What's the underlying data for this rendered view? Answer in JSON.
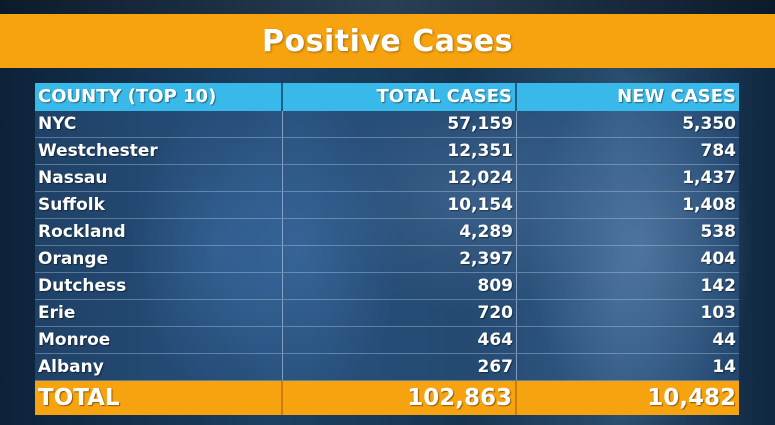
{
  "banner": {
    "title": "Positive Cases"
  },
  "table": {
    "headers": {
      "county": "COUNTY (TOP 10)",
      "total": "TOTAL CASES",
      "new": "NEW CASES"
    },
    "rows": [
      {
        "county": "NYC",
        "total": "57,159",
        "new": "5,350"
      },
      {
        "county": "Westchester",
        "total": "12,351",
        "new": "784"
      },
      {
        "county": "Nassau",
        "total": "12,024",
        "new": "1,437"
      },
      {
        "county": "Suffolk",
        "total": "10,154",
        "new": "1,408"
      },
      {
        "county": "Rockland",
        "total": "4,289",
        "new": "538"
      },
      {
        "county": "Orange",
        "total": "2,397",
        "new": "404"
      },
      {
        "county": "Dutchess",
        "total": "809",
        "new": "142"
      },
      {
        "county": "Erie",
        "total": "720",
        "new": "103"
      },
      {
        "county": "Monroe",
        "total": "464",
        "new": "44"
      },
      {
        "county": "Albany",
        "total": "267",
        "new": "14"
      }
    ],
    "total": {
      "label": "TOTAL",
      "total": "102,863",
      "new": "10,482"
    }
  },
  "colors": {
    "banner": "#f7a30f",
    "header": "#38b9ea",
    "text": "#ffffff"
  }
}
